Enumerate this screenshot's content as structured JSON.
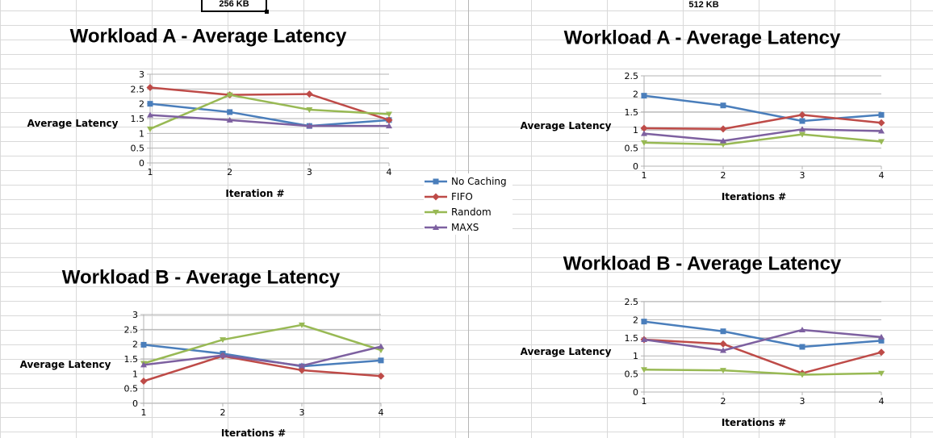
{
  "headers": {
    "left": "256 KB",
    "right": "512 KB"
  },
  "legend": [
    {
      "name": "No Caching",
      "color": "#4a7ebb",
      "marker": "square"
    },
    {
      "name": "FIFO",
      "color": "#be4b48",
      "marker": "diamond"
    },
    {
      "name": "Random",
      "color": "#98b954",
      "marker": "triangle-down"
    },
    {
      "name": "MAXS",
      "color": "#7d60a0",
      "marker": "triangle"
    }
  ],
  "chart_data": [
    {
      "type": "line",
      "title": "Workload A - Average Latency",
      "xlabel": "Iteration #",
      "ylabel": "Average Latency",
      "categories": [
        "1",
        "2",
        "3",
        "4"
      ],
      "ylim": [
        0,
        3
      ],
      "yticks": [
        "0",
        "0.5",
        "1",
        "1.5",
        "2",
        "2.5",
        "3"
      ],
      "grid": true,
      "series": [
        {
          "name": "No Caching",
          "values": [
            2.0,
            1.72,
            1.25,
            1.45
          ]
        },
        {
          "name": "FIFO",
          "values": [
            2.55,
            2.3,
            2.33,
            1.45
          ]
        },
        {
          "name": "Random",
          "values": [
            1.15,
            2.3,
            1.8,
            1.65
          ]
        },
        {
          "name": "MAXS",
          "values": [
            1.62,
            1.45,
            1.25,
            1.25
          ]
        }
      ]
    },
    {
      "type": "line",
      "title": "Workload A - Average Latency",
      "xlabel": "Iterations #",
      "ylabel": "Average Latency",
      "categories": [
        "1",
        "2",
        "3",
        "4"
      ],
      "ylim": [
        0,
        2.5
      ],
      "yticks": [
        "0",
        "0.5",
        "1",
        "1.5",
        "2",
        "2.5"
      ],
      "grid": true,
      "series": [
        {
          "name": "No Caching",
          "values": [
            1.95,
            1.68,
            1.25,
            1.42
          ]
        },
        {
          "name": "FIFO",
          "values": [
            1.05,
            1.03,
            1.42,
            1.2
          ]
        },
        {
          "name": "Random",
          "values": [
            0.65,
            0.6,
            0.88,
            0.68
          ]
        },
        {
          "name": "MAXS",
          "values": [
            0.9,
            0.7,
            1.02,
            0.97
          ]
        }
      ]
    },
    {
      "type": "line",
      "title": "Workload B - Average Latency",
      "xlabel": "Iterations #",
      "ylabel": "Average Latency",
      "categories": [
        "1",
        "2",
        "3",
        "4"
      ],
      "ylim": [
        0,
        3
      ],
      "yticks": [
        "0",
        "0.5",
        "1",
        "1.5",
        "2",
        "2.5",
        "3"
      ],
      "grid": true,
      "series": [
        {
          "name": "No Caching",
          "values": [
            1.98,
            1.68,
            1.25,
            1.45
          ]
        },
        {
          "name": "FIFO",
          "values": [
            0.75,
            1.6,
            1.12,
            0.92
          ]
        },
        {
          "name": "Random",
          "values": [
            1.35,
            2.15,
            2.65,
            1.8
          ]
        },
        {
          "name": "MAXS",
          "values": [
            1.3,
            1.62,
            1.27,
            1.92
          ]
        }
      ]
    },
    {
      "type": "line",
      "title": "Workload B - Average Latency",
      "xlabel": "Iterations #",
      "ylabel": "Average Latency",
      "categories": [
        "1",
        "2",
        "3",
        "4"
      ],
      "ylim": [
        0,
        2.5
      ],
      "yticks": [
        "0",
        "0.5",
        "1",
        "1.5",
        "2",
        "2.5"
      ],
      "grid": true,
      "series": [
        {
          "name": "No Caching",
          "values": [
            1.95,
            1.68,
            1.25,
            1.42
          ]
        },
        {
          "name": "FIFO",
          "values": [
            1.45,
            1.33,
            0.52,
            1.1
          ]
        },
        {
          "name": "Random",
          "values": [
            0.62,
            0.6,
            0.48,
            0.52
          ]
        },
        {
          "name": "MAXS",
          "values": [
            1.45,
            1.15,
            1.72,
            1.52
          ]
        }
      ]
    }
  ]
}
